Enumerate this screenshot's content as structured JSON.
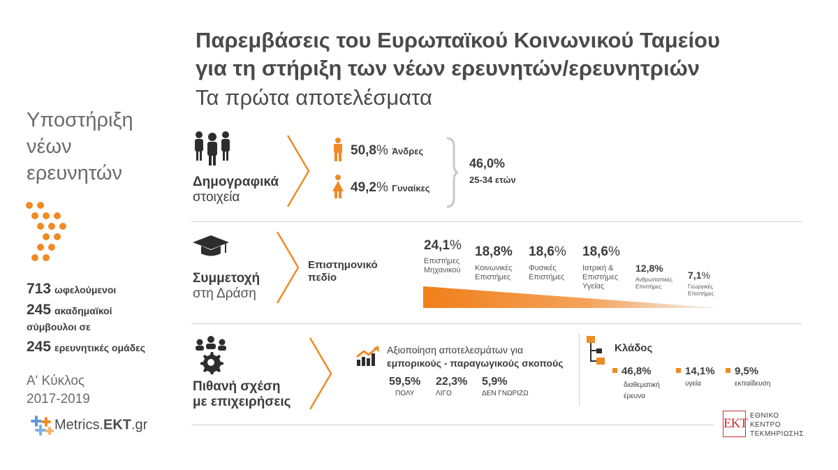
{
  "title": {
    "line1": "Παρεμβάσεις του Ευρωπαϊκού Κοινωνικού Ταμείου",
    "line2": "για τη στήριξη των νέων ερευνητών/ερευνητριών",
    "subtitle": "Τα πρώτα αποτελέσματα"
  },
  "sidebar": {
    "title_lines": [
      "Υποστήριξη",
      "νέων",
      "ερευνητών"
    ],
    "stats": [
      {
        "value": "713",
        "label": "ωφελούμενοι"
      },
      {
        "value": "245",
        "label": "ακαδημαϊκοί"
      },
      {
        "value": "",
        "label": "σύμβουλοι σε"
      },
      {
        "value": "245",
        "label": "ερευνητικές ομάδες"
      }
    ],
    "cycle_lines": [
      "Α' Κύκλος",
      "2017-2019"
    ],
    "brand": "Metrics.EKT.gr",
    "brand_plain": "Metrics.",
    "brand_bold": "EKT",
    "brand_tail": ".gr"
  },
  "demographics": {
    "label_line1": "Δημογραφικά",
    "label_line2": "στοιχεία",
    "men_value": "50,8",
    "men_label": "Άνδρες",
    "women_value": "49,2",
    "women_label": "Γυναίκες",
    "pct": "%",
    "age_value": "46,0%",
    "age_label": "25-34 ετών"
  },
  "participation": {
    "label_line1": "Συμμετοχή",
    "label_line2": "στη Δράση",
    "field_line1": "Επιστημονικό",
    "field_line2": "πεδίο",
    "fields": [
      {
        "value": "24,1",
        "pct": "%",
        "lines": [
          "Επιστήμες",
          "Μηχανικού"
        ]
      },
      {
        "value": "18,8%",
        "lines": [
          "Κοινωνικές",
          "Επιστήμες"
        ]
      },
      {
        "value": "18,6",
        "pct": "%",
        "lines": [
          "Φυσικές",
          "Επιστήμες"
        ]
      },
      {
        "value": "18,6",
        "pct": "%",
        "lines": [
          "Ιατρική &",
          "Επιστήμες",
          "Υγείας"
        ]
      },
      {
        "value": "12,8%",
        "lines": [
          "Ανθρωπιστικές",
          "Επιστήμες"
        ]
      },
      {
        "value": "7,1",
        "pct": "%",
        "lines": [
          "Γεωργικές",
          "Επιστήμες"
        ]
      }
    ],
    "chart_colors": {
      "start": "#f07f1a",
      "end": "#f3f3f3"
    }
  },
  "business": {
    "label_line1": "Πιθανή σχέση",
    "label_line2": "με επιχειρήσεις",
    "util_line1": "Αξιοποίηση αποτελεσμάτων για",
    "util_line2": "εμπορικούς - παραγωγικούς σκοπούς",
    "answers": [
      {
        "value": "59,5%",
        "label": "ΠΟΛΥ"
      },
      {
        "value": "22,3%",
        "label": "ΛΙΓΟ"
      },
      {
        "value": "5,9%",
        "label": "ΔΕΝ ΓΝΩΡΙΖΩ"
      }
    ],
    "sector_title": "Κλάδος",
    "sectors": [
      {
        "value": "46,8%",
        "lines": [
          "διαθεματική",
          "έρευνα"
        ]
      },
      {
        "value": "14,1%",
        "lines": [
          "υγεία"
        ]
      },
      {
        "value": "9,5%",
        "lines": [
          "εκπαίδευση"
        ]
      }
    ]
  },
  "ekt": {
    "logo": "EKT",
    "lines": [
      "ΕΘΝΙΚΟ",
      "ΚΕΝΤΡΟ",
      "ΤΕΚΜΗΡΙΩΣΗΣ"
    ]
  },
  "colors": {
    "accent": "#f08a24",
    "text": "#3c3c3c",
    "muted": "#6b6b6b",
    "rule": "#cfcfcf"
  }
}
